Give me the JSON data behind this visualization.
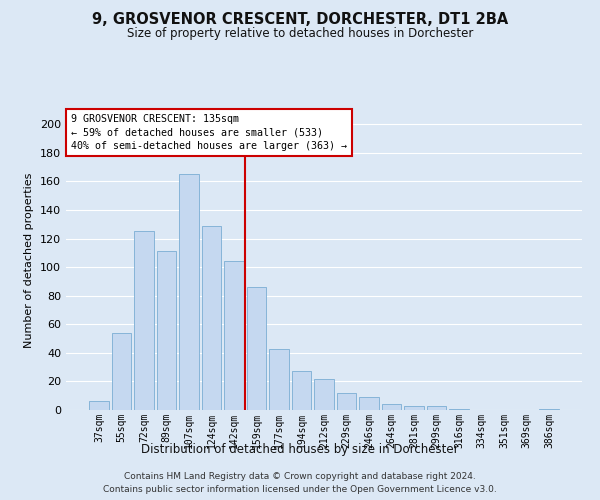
{
  "title": "9, GROSVENOR CRESCENT, DORCHESTER, DT1 2BA",
  "subtitle": "Size of property relative to detached houses in Dorchester",
  "xlabel": "Distribution of detached houses by size in Dorchester",
  "ylabel": "Number of detached properties",
  "bar_labels": [
    "37sqm",
    "55sqm",
    "72sqm",
    "89sqm",
    "107sqm",
    "124sqm",
    "142sqm",
    "159sqm",
    "177sqm",
    "194sqm",
    "212sqm",
    "229sqm",
    "246sqm",
    "264sqm",
    "281sqm",
    "299sqm",
    "316sqm",
    "334sqm",
    "351sqm",
    "369sqm",
    "386sqm"
  ],
  "bar_values": [
    6,
    54,
    125,
    111,
    165,
    129,
    104,
    86,
    43,
    27,
    22,
    12,
    9,
    4,
    3,
    3,
    1,
    0,
    0,
    0,
    1
  ],
  "bar_color": "#c5d8f0",
  "bar_edgecolor": "#7aadd4",
  "vline_x": 6.5,
  "vline_color": "#cc0000",
  "annotation_text": "9 GROSVENOR CRESCENT: 135sqm\n← 59% of detached houses are smaller (533)\n40% of semi-detached houses are larger (363) →",
  "annotation_box_edgecolor": "#cc0000",
  "annotation_box_facecolor": "#ffffff",
  "ylim": [
    0,
    210
  ],
  "yticks": [
    0,
    20,
    40,
    60,
    80,
    100,
    120,
    140,
    160,
    180,
    200
  ],
  "footer_line1": "Contains HM Land Registry data © Crown copyright and database right 2024.",
  "footer_line2": "Contains public sector information licensed under the Open Government Licence v3.0.",
  "bg_color": "#dce8f5",
  "plot_bg_color": "#dce8f5"
}
